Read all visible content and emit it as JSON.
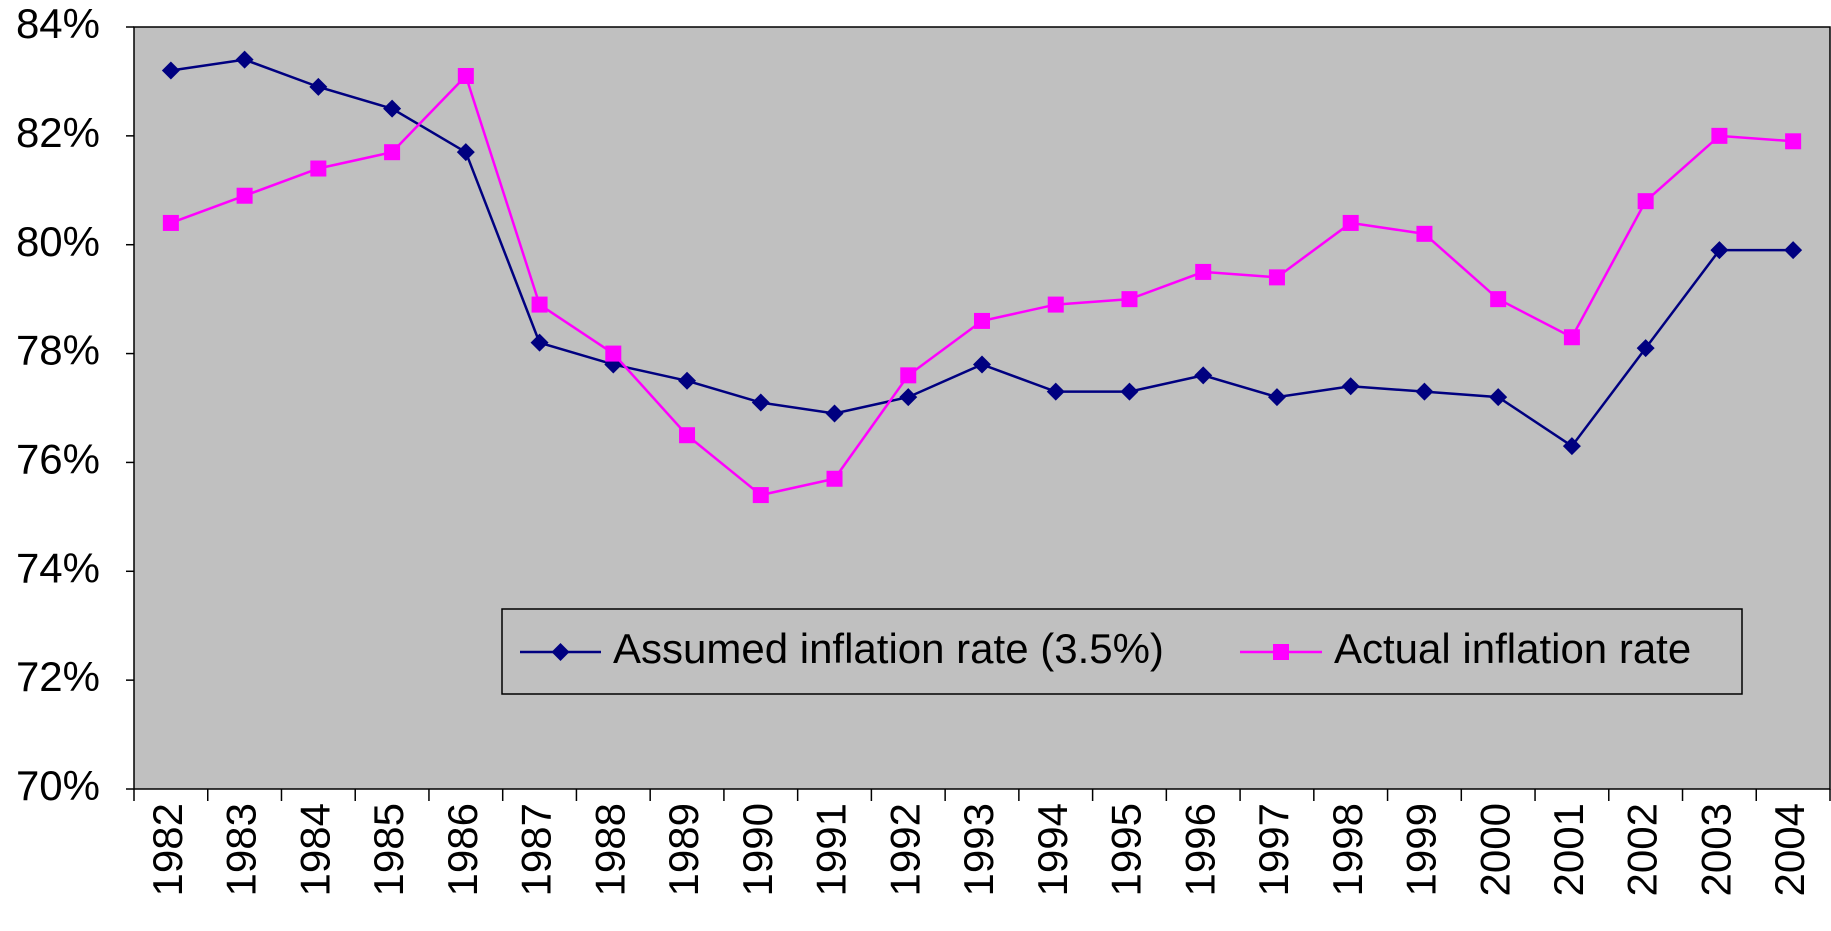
{
  "chart_data": {
    "type": "line",
    "categories": [
      "1982",
      "1983",
      "1984",
      "1985",
      "1986",
      "1987",
      "1988",
      "1989",
      "1990",
      "1991",
      "1992",
      "1993",
      "1994",
      "1995",
      "1996",
      "1997",
      "1998",
      "1999",
      "2000",
      "2001",
      "2002",
      "2003",
      "2004"
    ],
    "series": [
      {
        "name": "Assumed inflation rate (3.5%)",
        "color": "#000080",
        "marker": "diamond",
        "values": [
          83.2,
          83.4,
          82.9,
          82.5,
          81.7,
          78.2,
          77.8,
          77.5,
          77.1,
          76.9,
          77.2,
          77.8,
          77.3,
          77.3,
          77.6,
          77.2,
          77.4,
          77.3,
          77.2,
          76.3,
          78.1,
          79.9,
          79.9
        ]
      },
      {
        "name": "Actual inflation rate",
        "color": "#ff00ff",
        "marker": "square",
        "values": [
          80.4,
          80.9,
          81.4,
          81.7,
          83.1,
          78.9,
          78.0,
          76.5,
          75.4,
          75.7,
          77.6,
          78.6,
          78.9,
          79.0,
          79.5,
          79.4,
          80.4,
          80.2,
          79.0,
          78.3,
          80.8,
          82.0,
          81.9
        ]
      }
    ],
    "ylim": [
      70,
      84
    ],
    "yticks": [
      {
        "value": 70,
        "label": "70%"
      },
      {
        "value": 72,
        "label": "72%"
      },
      {
        "value": 74,
        "label": "74%"
      },
      {
        "value": 76,
        "label": "76%"
      },
      {
        "value": 78,
        "label": "78%"
      },
      {
        "value": 80,
        "label": "80%"
      },
      {
        "value": 82,
        "label": "82%"
      },
      {
        "value": 84,
        "label": "84%"
      }
    ],
    "grid": false
  }
}
